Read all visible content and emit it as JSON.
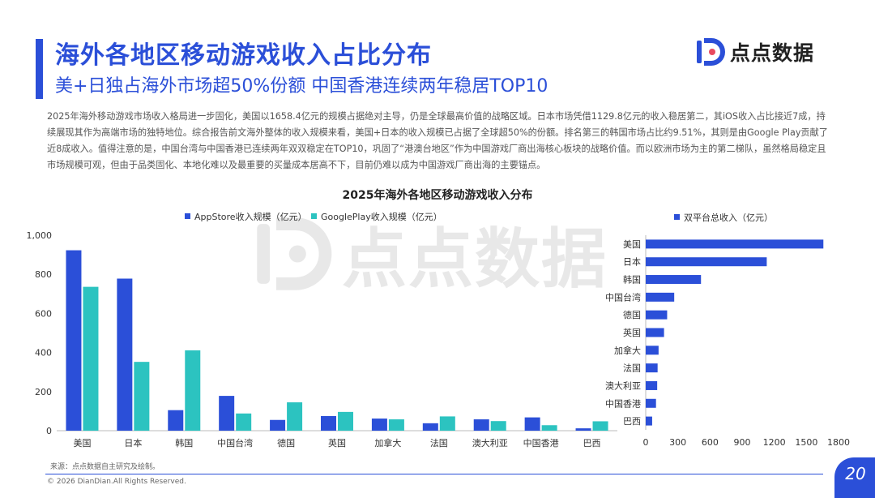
{
  "header": {
    "title": "海外各地区移动游戏收入占比分布",
    "subtitle": "美+日独占海外市场超50%份额 中国香港连续两年稳居TOP10",
    "logo_text": "点点数据"
  },
  "description": "2025年海外移动游戏市场收入格局进一步固化，美国以1658.4亿元的规模占据绝对主导，仍是全球最高价值的战略区域。日本市场凭借1129.8亿元的收入稳居第二，其iOS收入占比接近7成，持续展现其作为高端市场的独特地位。综合报告前文海外整体的收入规模来看，美国+日本的收入规模已占据了全球超50%的份额。排名第三的韩国市场占比约9.51%，其则是由Google Play贡献了近8成收入。值得注意的是，中国台湾与中国香港已连续两年双双稳定在TOP10，巩固了“港澳台地区”作为中国游戏厂商出海核心板块的战略价值。而以欧洲市场为主的第二梯队，虽然格局稳定且市场规模可观，但由于品类固化、本地化难以及最重要的买量成本居高不下，目前仍难以成为中国游戏厂商出海的主要锚点。",
  "watermark": "点点数据",
  "footer": {
    "source": "来源：点点数据自主研究及绘制。",
    "copyright": "© 2026 DianDian.All Rights Reserved.",
    "page": "20"
  },
  "colors": {
    "accent": "#2b4fd8",
    "appstore": "#2b4fd8",
    "googleplay": "#2cc3c0"
  },
  "chart_data": [
    {
      "type": "bar",
      "title": "2025年海外各地区移动游戏收入分布",
      "categories": [
        "美国",
        "日本",
        "韩国",
        "中国台湾",
        "德国",
        "英国",
        "加拿大",
        "法国",
        "澳大利亚",
        "中国香港",
        "巴西"
      ],
      "series": [
        {
          "name": "AppStore收入规模（亿元）",
          "values": [
            923,
            778,
            105,
            178,
            55,
            75,
            62,
            38,
            58,
            68,
            12
          ]
        },
        {
          "name": "GooglePlay收入规模（亿元）",
          "values": [
            736,
            352,
            411,
            88,
            145,
            96,
            58,
            73,
            49,
            28,
            48
          ]
        }
      ],
      "ylim": [
        0,
        1000
      ],
      "yticks": [
        0,
        200,
        400,
        600,
        800,
        1000
      ],
      "ytick_labels": [
        "0",
        "200",
        "400",
        "600",
        "800",
        "1,000"
      ],
      "legend": "top"
    },
    {
      "type": "bar",
      "orientation": "horizontal",
      "categories": [
        "美国",
        "日本",
        "韩国",
        "中国台湾",
        "德国",
        "英国",
        "加拿大",
        "法国",
        "澳大利亚",
        "中国香港",
        "巴西"
      ],
      "series": [
        {
          "name": "双平台总收入（亿元）",
          "values": [
            1658.4,
            1129.8,
            516,
            266,
            200,
            171,
            120,
            111,
            107,
            96,
            60
          ]
        }
      ],
      "xlim": [
        0,
        1800
      ],
      "xticks": [
        0,
        300,
        600,
        900,
        1200,
        1500,
        1800
      ],
      "legend": "top"
    }
  ]
}
